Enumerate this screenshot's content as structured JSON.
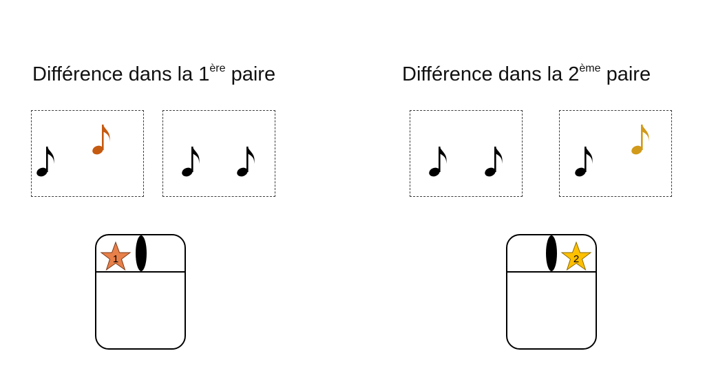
{
  "headings": {
    "left": {
      "prefix": "Différence dans la 1",
      "sup": "ère",
      "suffix": " paire"
    },
    "right": {
      "prefix": "Différence dans la 2",
      "sup": "ème",
      "suffix": " paire"
    }
  },
  "colors": {
    "note_default": "#000000",
    "note_diff_1": "#c55a11",
    "note_diff_2": "#d19a1a",
    "star_1": "#e8804a",
    "star_2": "#ffc000"
  },
  "mice": {
    "left": {
      "star_label": "1",
      "star_side": "left"
    },
    "right": {
      "star_label": "2",
      "star_side": "right"
    }
  }
}
